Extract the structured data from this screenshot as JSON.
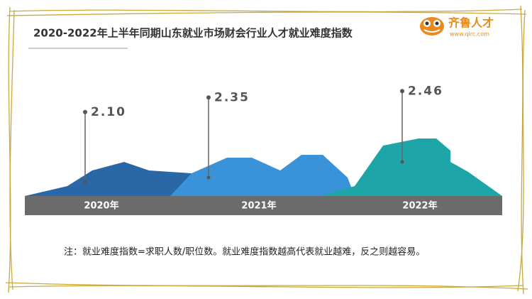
{
  "chart_data": {
    "type": "mountain",
    "title": "2020-2022年上半年同期山东就业市场财会行业人才就业难度指数",
    "categories": [
      "2020年",
      "2021年",
      "2022年"
    ],
    "values": [
      2.1,
      2.35,
      2.46
    ],
    "value_labels": [
      "2.10",
      "2.35",
      "2.46"
    ],
    "colors": [
      "#2a67a6",
      "#3a93d8",
      "#1ea5a7"
    ],
    "note": "注：就业难度指数=求职人数/职位数。就业难度指数越高代表就业越难，反之则越容易。"
  },
  "logo": {
    "name": "齐鲁人才",
    "url": "www.qlrc.com"
  }
}
